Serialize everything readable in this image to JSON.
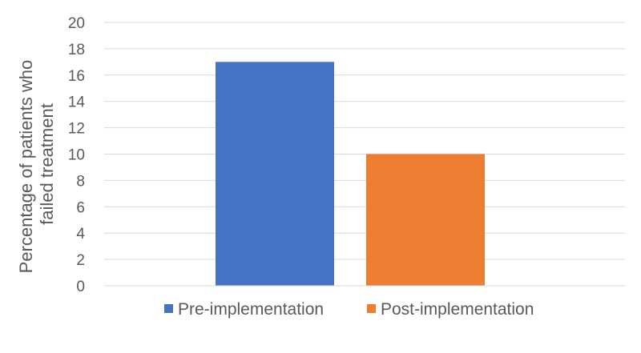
{
  "chart_data": {
    "type": "bar",
    "title": "",
    "xlabel": "",
    "ylabel_lines": [
      "Percentage of patients who",
      "failed treatment"
    ],
    "ylim": [
      0,
      20
    ],
    "yticks": [
      "0",
      "2",
      "4",
      "6",
      "8",
      "10",
      "12",
      "14",
      "16",
      "18",
      "20"
    ],
    "grid": true,
    "legend_position": "bottom",
    "series": [
      {
        "name": "Pre-implementation",
        "value": 17,
        "color": "#4472c4"
      },
      {
        "name": "Post-implementation",
        "value": 10,
        "color": "#ed7d31"
      }
    ]
  }
}
